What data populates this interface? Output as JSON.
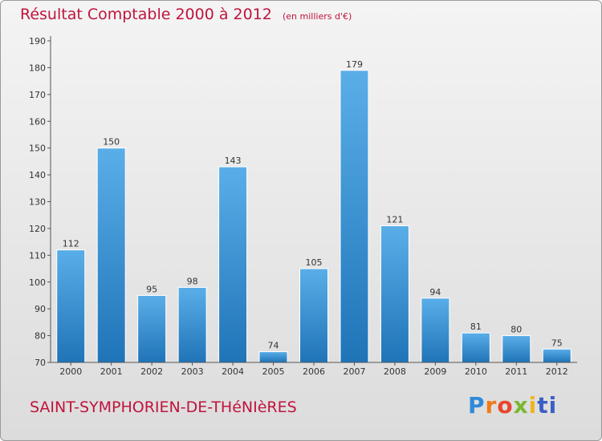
{
  "chart_data": {
    "type": "bar",
    "title": "Résultat Comptable 2000 à 2012",
    "unit_label": "(en milliers d'€)",
    "categories": [
      "2000",
      "2001",
      "2002",
      "2003",
      "2004",
      "2005",
      "2006",
      "2007",
      "2008",
      "2009",
      "2010",
      "2011",
      "2012"
    ],
    "values": [
      112,
      150,
      95,
      98,
      143,
      74,
      105,
      179,
      121,
      94,
      81,
      80,
      75
    ],
    "ylim": [
      70,
      190
    ],
    "yticks": [
      70,
      80,
      90,
      100,
      110,
      120,
      130,
      140,
      150,
      160,
      170,
      180,
      190
    ],
    "grid": false,
    "colors": {
      "bar_top": "#5aaee8",
      "bar_bottom": "#1f74b8",
      "title": "#c0143c"
    }
  },
  "commune": "SAINT-SYMPHORIEN-DE-THéNIèRES",
  "logo": {
    "text": "Proxiti",
    "parts": [
      "P",
      "r",
      "o",
      "x",
      "i",
      "ti"
    ]
  }
}
